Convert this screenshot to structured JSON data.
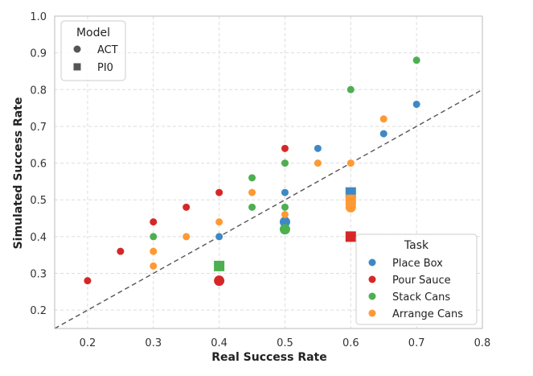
{
  "chart_data": {
    "type": "scatter",
    "title": "",
    "xlabel": "Real Success Rate",
    "ylabel": "Simulated Success Rate",
    "xlim": [
      0.15,
      0.8
    ],
    "ylim": [
      0.15,
      1.0
    ],
    "x_ticks": [
      "0.2",
      "0.3",
      "0.4",
      "0.5",
      "0.6",
      "0.7",
      "0.8"
    ],
    "y_ticks": [
      "0.2",
      "0.3",
      "0.4",
      "0.5",
      "0.6",
      "0.7",
      "0.8",
      "0.9",
      "1.0"
    ],
    "grid": true,
    "reference_line": {
      "style": "dashed",
      "from": [
        0.15,
        0.15
      ],
      "to": [
        0.8,
        0.8
      ]
    },
    "model_legend": {
      "title": "Model",
      "placement": "top-left",
      "entries": [
        {
          "label": "ACT",
          "marker": "circle"
        },
        {
          "label": "PI0",
          "marker": "square"
        }
      ]
    },
    "task_legend": {
      "title": "Task",
      "placement": "bottom-right",
      "entries": [
        {
          "label": "Place Box",
          "color": "#3f88c5"
        },
        {
          "label": "Pour Sauce",
          "color": "#d62728"
        },
        {
          "label": "Stack Cans",
          "color": "#4caf50"
        },
        {
          "label": "Arrange Cans",
          "color": "#ff9933"
        }
      ]
    },
    "series": [
      {
        "task": "Place Box",
        "color": "#3f88c5",
        "points": [
          {
            "x": 0.4,
            "y": 0.4,
            "model": "ACT",
            "size": "small"
          },
          {
            "x": 0.5,
            "y": 0.52,
            "model": "ACT",
            "size": "small"
          },
          {
            "x": 0.55,
            "y": 0.64,
            "model": "ACT",
            "size": "small"
          },
          {
            "x": 0.65,
            "y": 0.68,
            "model": "ACT",
            "size": "small"
          },
          {
            "x": 0.7,
            "y": 0.76,
            "model": "ACT",
            "size": "small"
          },
          {
            "x": 0.5,
            "y": 0.44,
            "model": "ACT",
            "size": "large"
          },
          {
            "x": 0.6,
            "y": 0.52,
            "model": "PI0",
            "size": "large"
          }
        ]
      },
      {
        "task": "Pour Sauce",
        "color": "#d62728",
        "points": [
          {
            "x": 0.2,
            "y": 0.28,
            "model": "ACT",
            "size": "small"
          },
          {
            "x": 0.25,
            "y": 0.36,
            "model": "ACT",
            "size": "small"
          },
          {
            "x": 0.3,
            "y": 0.44,
            "model": "ACT",
            "size": "small"
          },
          {
            "x": 0.35,
            "y": 0.48,
            "model": "ACT",
            "size": "small"
          },
          {
            "x": 0.4,
            "y": 0.52,
            "model": "ACT",
            "size": "small"
          },
          {
            "x": 0.5,
            "y": 0.64,
            "model": "ACT",
            "size": "small"
          },
          {
            "x": 0.4,
            "y": 0.28,
            "model": "ACT",
            "size": "large"
          },
          {
            "x": 0.6,
            "y": 0.4,
            "model": "PI0",
            "size": "large"
          }
        ]
      },
      {
        "task": "Stack Cans",
        "color": "#4caf50",
        "points": [
          {
            "x": 0.3,
            "y": 0.4,
            "model": "ACT",
            "size": "small"
          },
          {
            "x": 0.45,
            "y": 0.48,
            "model": "ACT",
            "size": "small"
          },
          {
            "x": 0.45,
            "y": 0.56,
            "model": "ACT",
            "size": "small"
          },
          {
            "x": 0.5,
            "y": 0.48,
            "model": "ACT",
            "size": "small"
          },
          {
            "x": 0.5,
            "y": 0.6,
            "model": "ACT",
            "size": "small"
          },
          {
            "x": 0.6,
            "y": 0.8,
            "model": "ACT",
            "size": "small"
          },
          {
            "x": 0.7,
            "y": 0.88,
            "model": "ACT",
            "size": "small"
          },
          {
            "x": 0.5,
            "y": 0.42,
            "model": "ACT",
            "size": "large"
          },
          {
            "x": 0.4,
            "y": 0.32,
            "model": "PI0",
            "size": "large"
          }
        ]
      },
      {
        "task": "Arrange Cans",
        "color": "#ff9933",
        "points": [
          {
            "x": 0.3,
            "y": 0.32,
            "model": "ACT",
            "size": "small"
          },
          {
            "x": 0.3,
            "y": 0.36,
            "model": "ACT",
            "size": "small"
          },
          {
            "x": 0.35,
            "y": 0.4,
            "model": "ACT",
            "size": "small"
          },
          {
            "x": 0.4,
            "y": 0.44,
            "model": "ACT",
            "size": "small"
          },
          {
            "x": 0.45,
            "y": 0.52,
            "model": "ACT",
            "size": "small"
          },
          {
            "x": 0.5,
            "y": 0.46,
            "model": "ACT",
            "size": "small"
          },
          {
            "x": 0.55,
            "y": 0.6,
            "model": "ACT",
            "size": "small"
          },
          {
            "x": 0.6,
            "y": 0.6,
            "model": "ACT",
            "size": "small"
          },
          {
            "x": 0.65,
            "y": 0.72,
            "model": "ACT",
            "size": "small"
          },
          {
            "x": 0.6,
            "y": 0.48,
            "model": "ACT",
            "size": "large"
          },
          {
            "x": 0.6,
            "y": 0.5,
            "model": "PI0",
            "size": "large"
          }
        ]
      }
    ]
  }
}
